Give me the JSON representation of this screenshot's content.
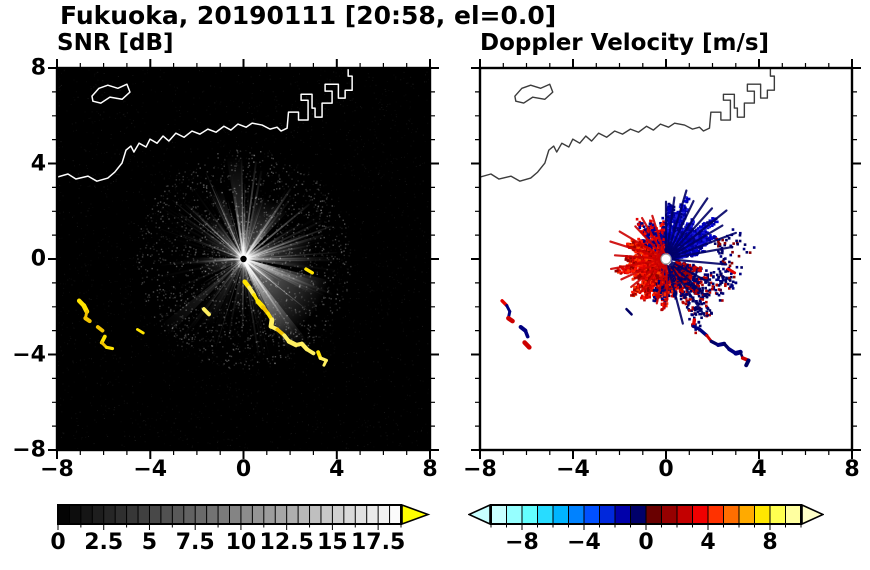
{
  "chart_data": {
    "type": "heatmap",
    "title": "Fukuoka, 20190111 [20:58, el=0.0]",
    "panels": [
      {
        "id": "snr",
        "title": "SNR [dB]",
        "xlim": [
          -8,
          8
        ],
        "ylim": [
          -8,
          8
        ],
        "background": "#000000",
        "coast_color": "#ffffff",
        "colorbar": {
          "min": 0,
          "max": 18.75,
          "cell_step": 0.625,
          "gradient": [
            "#000000",
            "#ffffff"
          ],
          "over_arrow_color": "#ffff00",
          "tick_values": [
            0,
            2.5,
            5,
            7.5,
            10,
            12.5,
            15,
            17.5
          ],
          "tick_labels": [
            "0",
            "2.5",
            "5",
            "7.5",
            "10",
            "12.5",
            "15",
            "17.5"
          ]
        }
      },
      {
        "id": "vel",
        "title": "Doppler Velocity [m/s]",
        "xlim": [
          -8,
          8
        ],
        "ylim": [
          -8,
          8
        ],
        "background": "#ffffff",
        "coast_color": "#3c3c3c",
        "colorbar": {
          "min": -10,
          "max": 10,
          "cell_colors": [
            "#c8ffff",
            "#96ffff",
            "#64ffff",
            "#28dcff",
            "#00b4ff",
            "#0082ff",
            "#0050ff",
            "#0028dc",
            "#0000aa",
            "#000069",
            "#690000",
            "#960000",
            "#c30000",
            "#f00000",
            "#ff3200",
            "#ff6e00",
            "#ffaa00",
            "#ffe600",
            "#ffff50",
            "#ffffa0"
          ],
          "under_arrow_color": "#c8ffff",
          "over_arrow_color": "#ffffc8",
          "tick_values": [
            -8,
            -4,
            0,
            4,
            8
          ],
          "tick_labels": [
            "−8",
            "−4",
            "0",
            "4",
            "8"
          ]
        }
      }
    ],
    "axes": {
      "major_ticks": [
        -8,
        -4,
        0,
        4,
        8
      ],
      "minor_step": 1,
      "x_tick_labels": [
        "−8",
        "−4",
        "0",
        "4",
        "8"
      ],
      "y_tick_values": [
        8,
        4,
        0,
        -4,
        -8
      ],
      "y_tick_labels": [
        "8",
        "4",
        "0",
        "−4",
        "−8"
      ]
    },
    "radar_center": [
      0,
      0
    ],
    "coastline": {
      "main": [
        [
          -8,
          3.43
        ],
        [
          -7.53,
          3.56
        ],
        [
          -7.19,
          3.35
        ],
        [
          -6.67,
          3.47
        ],
        [
          -6.29,
          3.26
        ],
        [
          -5.82,
          3.39
        ],
        [
          -5.52,
          3.64
        ],
        [
          -5.21,
          4.02
        ],
        [
          -5.04,
          4.56
        ],
        [
          -4.83,
          4.73
        ],
        [
          -4.7,
          4.48
        ],
        [
          -4.48,
          4.85
        ],
        [
          -4.18,
          4.69
        ],
        [
          -4.01,
          5.02
        ],
        [
          -3.71,
          4.85
        ],
        [
          -3.45,
          5.15
        ],
        [
          -3.2,
          4.94
        ],
        [
          -2.9,
          5.27
        ],
        [
          -2.55,
          5.1
        ],
        [
          -2.21,
          5.36
        ],
        [
          -1.87,
          5.23
        ],
        [
          -1.53,
          5.44
        ],
        [
          -1.18,
          5.31
        ],
        [
          -0.84,
          5.56
        ],
        [
          -0.54,
          5.4
        ],
        [
          -0.24,
          5.65
        ],
        [
          0.11,
          5.52
        ],
        [
          0.37,
          5.69
        ],
        [
          0.8,
          5.61
        ],
        [
          1.14,
          5.44
        ],
        [
          1.44,
          5.52
        ],
        [
          1.61,
          5.36
        ],
        [
          1.87,
          5.48
        ],
        [
          1.93,
          6.15
        ],
        [
          2.36,
          6.15
        ],
        [
          2.36,
          5.82
        ],
        [
          2.77,
          5.82
        ],
        [
          2.77,
          6.65
        ],
        [
          2.47,
          6.65
        ],
        [
          2.47,
          6.9
        ],
        [
          2.94,
          6.9
        ],
        [
          2.94,
          6.32
        ],
        [
          3.07,
          6.32
        ],
        [
          3.07,
          5.94
        ],
        [
          3.37,
          5.94
        ],
        [
          3.37,
          6.53
        ],
        [
          3.8,
          6.53
        ],
        [
          3.8,
          7.03
        ],
        [
          3.5,
          7.03
        ],
        [
          3.5,
          7.32
        ],
        [
          4.07,
          7.32
        ],
        [
          4.07,
          6.74
        ],
        [
          4.36,
          6.74
        ],
        [
          4.36,
          7.07
        ],
        [
          4.66,
          7.07
        ],
        [
          4.66,
          7.66
        ],
        [
          4.49,
          7.66
        ],
        [
          4.49,
          8.05
        ]
      ],
      "island": [
        [
          -6.5,
          6.82
        ],
        [
          -6.2,
          7.15
        ],
        [
          -5.82,
          7.28
        ],
        [
          -5.39,
          7.15
        ],
        [
          -5,
          7.32
        ],
        [
          -4.87,
          6.99
        ],
        [
          -5.21,
          6.69
        ],
        [
          -5.73,
          6.78
        ],
        [
          -6.12,
          6.53
        ],
        [
          -6.46,
          6.61
        ]
      ]
    },
    "snr_content": {
      "seed": 11,
      "noise_count": 2600,
      "radial_noise_count": 1700,
      "ray_seed": 5,
      "ray_count": 240,
      "wedges": [
        {
          "angle": -40,
          "spread": 52,
          "len": 3.8,
          "alpha": 0.5
        },
        {
          "angle": -58,
          "spread": 12,
          "len": 4.4,
          "alpha": 0.55
        },
        {
          "angle": -22,
          "spread": 10,
          "len": 3.4,
          "alpha": 0.45
        },
        {
          "angle": -5,
          "spread": 8,
          "len": 3.0,
          "alpha": 0.3
        },
        {
          "angle": 8,
          "spread": 20,
          "len": 3.0,
          "alpha": 0.3
        },
        {
          "angle": 62,
          "spread": 30,
          "len": 2.8,
          "alpha": 0.34
        },
        {
          "angle": 95,
          "spread": 9,
          "len": 4.4,
          "alpha": 0.3
        },
        {
          "angle": 112,
          "spread": 10,
          "len": 3.2,
          "alpha": 0.25
        },
        {
          "angle": 130,
          "spread": 12,
          "len": 2.4,
          "alpha": 0.2
        },
        {
          "angle": 150,
          "spread": 12,
          "len": 2.0,
          "alpha": 0.18
        },
        {
          "angle": 190,
          "spread": 25,
          "len": 1.9,
          "alpha": 0.2
        },
        {
          "angle": 222,
          "spread": 7,
          "len": 4.6,
          "alpha": 0.18
        },
        {
          "angle": 240,
          "spread": 10,
          "len": 3.2,
          "alpha": 0.15
        },
        {
          "angle": 265,
          "spread": 10,
          "len": 2.4,
          "alpha": 0.15
        }
      ],
      "clutter_colors": [
        "#ffe400",
        "#ffef60",
        "#f2c300"
      ],
      "clutter_width": 4,
      "clutter": [
        [
          [
            -7.05,
            -1.75
          ],
          [
            -6.85,
            -1.95
          ],
          [
            -6.72,
            -2.2
          ],
          [
            -6.78,
            -2.48
          ],
          [
            -6.6,
            -2.6
          ]
        ],
        [
          [
            -6.25,
            -2.85
          ],
          [
            -6.05,
            -3.0
          ],
          [
            -5.95,
            -3.25
          ],
          [
            -6.08,
            -3.5
          ],
          [
            -5.88,
            -3.7
          ],
          [
            -5.62,
            -3.75
          ]
        ],
        [
          [
            -4.55,
            -2.95
          ],
          [
            -4.3,
            -3.1
          ]
        ],
        [
          [
            -1.7,
            -2.1
          ],
          [
            -1.48,
            -2.32
          ]
        ],
        [
          [
            2.68,
            -0.42
          ],
          [
            2.95,
            -0.58
          ]
        ],
        [
          [
            0.05,
            -0.95
          ],
          [
            0.25,
            -1.2
          ],
          [
            0.45,
            -1.5
          ],
          [
            0.62,
            -1.78
          ],
          [
            0.84,
            -2.02
          ],
          [
            1.05,
            -2.28
          ],
          [
            1.22,
            -2.55
          ],
          [
            1.18,
            -2.82
          ],
          [
            1.45,
            -2.95
          ],
          [
            1.75,
            -3.2
          ],
          [
            1.95,
            -3.45
          ],
          [
            2.25,
            -3.6
          ],
          [
            2.5,
            -3.55
          ],
          [
            2.72,
            -3.78
          ],
          [
            3.0,
            -3.95
          ],
          [
            3.2,
            -3.9
          ],
          [
            3.3,
            -4.15
          ],
          [
            3.55,
            -4.25
          ],
          [
            3.45,
            -4.45
          ]
        ]
      ]
    },
    "vel_content": {
      "groups": [
        {
          "kind": "dots",
          "amin": 12,
          "amax": 96,
          "rmin": 0.2,
          "rmax": 2.9,
          "count": 1600,
          "size": 2.6,
          "pow": 0.8,
          "colors": [
            "#0000d2",
            "#0000a0",
            "#000080",
            "#1e1ee6",
            "#0000b4"
          ],
          "seed": 21
        },
        {
          "kind": "dots",
          "amin": 96,
          "amax": 150,
          "rmin": 0.2,
          "rmax": 2.2,
          "count": 500,
          "size": 2.6,
          "pow": 0.8,
          "colors": [
            "#e10000",
            "#0000a0",
            "#ff1400",
            "#000080"
          ],
          "seed": 26
        },
        {
          "kind": "dots",
          "amin": 150,
          "amax": 248,
          "rmin": 0.2,
          "rmax": 2.3,
          "count": 1300,
          "size": 2.6,
          "pow": 0.8,
          "colors": [
            "#e10000",
            "#b40000",
            "#ff1400",
            "#960000",
            "#ff3c00"
          ],
          "seed": 22
        },
        {
          "kind": "dots",
          "amin": 248,
          "amax": 296,
          "rmin": 0.3,
          "rmax": 2.2,
          "count": 650,
          "size": 2.6,
          "pow": 0.85,
          "colors": [
            "#d20000",
            "#000082",
            "#ff2800",
            "#000066",
            "#b40000"
          ],
          "seed": 23
        },
        {
          "kind": "dots",
          "amin": 296,
          "amax": 348,
          "rmin": 0.4,
          "rmax": 2.0,
          "count": 420,
          "size": 2.6,
          "pow": 0.85,
          "colors": [
            "#000073",
            "#a00000",
            "#000066",
            "#c80000"
          ],
          "seed": 27
        },
        {
          "kind": "dots",
          "amin": 290,
          "amax": 345,
          "rmin": 1.6,
          "rmax": 3.4,
          "count": 200,
          "size": 2.6,
          "pow": 1,
          "colors": [
            "#000073",
            "#b40000",
            "#000066"
          ],
          "seed": 24
        },
        {
          "kind": "dots",
          "amin": -22,
          "amax": 25,
          "rmin": 2.2,
          "rmax": 3.8,
          "count": 85,
          "size": 2.6,
          "pow": 1,
          "colors": [
            "#000066",
            "#8c0000",
            "#000080"
          ],
          "seed": 25
        },
        {
          "kind": "rays",
          "rays": [
            [
              10,
              2.9
            ],
            [
              20,
              3.2
            ],
            [
              30,
              2.8
            ],
            [
              38,
              3.3
            ],
            [
              47,
              2.9
            ],
            [
              55,
              3.1
            ],
            [
              64,
              2.7
            ],
            [
              73,
              3.0
            ],
            [
              82,
              2.6
            ],
            [
              90,
              2.4
            ],
            [
              355,
              2.6
            ],
            [
              305,
              2.9
            ],
            [
              318,
              2.4
            ],
            [
              332,
              2.1
            ],
            [
              285,
              2.8
            ]
          ],
          "color": "#000066",
          "width": 2.2,
          "seed": 28
        },
        {
          "kind": "rays",
          "rays": [
            [
              150,
              2.3
            ],
            [
              163,
              2.5
            ],
            [
              176,
              2.2
            ],
            [
              190,
              2.4
            ],
            [
              204,
              2.1
            ],
            [
              218,
              1.9
            ],
            [
              232,
              1.8
            ],
            [
              108,
              1.9
            ],
            [
              121,
              2.0
            ],
            [
              134,
              1.9
            ],
            [
              258,
              1.9
            ],
            [
              272,
              1.7
            ]
          ],
          "color": "#cc0000",
          "width": 2.2,
          "seed": 29
        }
      ],
      "clutter_colors": [
        "#cc0000",
        "#000080",
        "#e60000",
        "#000066"
      ],
      "clutter_width": 3.6,
      "clutter": [
        [
          [
            -7.05,
            -1.75
          ],
          [
            -6.85,
            -1.95
          ],
          [
            -6.72,
            -2.2
          ],
          [
            -6.78,
            -2.48
          ],
          [
            -6.6,
            -2.6
          ]
        ],
        [
          [
            -6.25,
            -2.85
          ],
          [
            -6.05,
            -3.0
          ],
          [
            -5.95,
            -3.25
          ],
          [
            -6.08,
            -3.5
          ],
          [
            -5.88,
            -3.7
          ],
          [
            -5.62,
            -3.75
          ]
        ],
        [
          [
            -1.7,
            -2.1
          ],
          [
            -1.48,
            -2.32
          ]
        ],
        [
          [
            2.68,
            -0.42
          ],
          [
            2.95,
            -0.58
          ]
        ],
        [
          [
            1.22,
            -2.55
          ],
          [
            1.18,
            -2.82
          ],
          [
            1.45,
            -2.95
          ],
          [
            1.75,
            -3.2
          ],
          [
            1.95,
            -3.45
          ],
          [
            2.25,
            -3.6
          ],
          [
            2.5,
            -3.55
          ],
          [
            2.72,
            -3.78
          ],
          [
            3.0,
            -3.95
          ],
          [
            3.2,
            -3.9
          ],
          [
            3.3,
            -4.15
          ],
          [
            3.55,
            -4.25
          ],
          [
            3.45,
            -4.45
          ]
        ]
      ],
      "center_fill": "#ffffff",
      "center_ring": "#9a9a9a"
    }
  }
}
